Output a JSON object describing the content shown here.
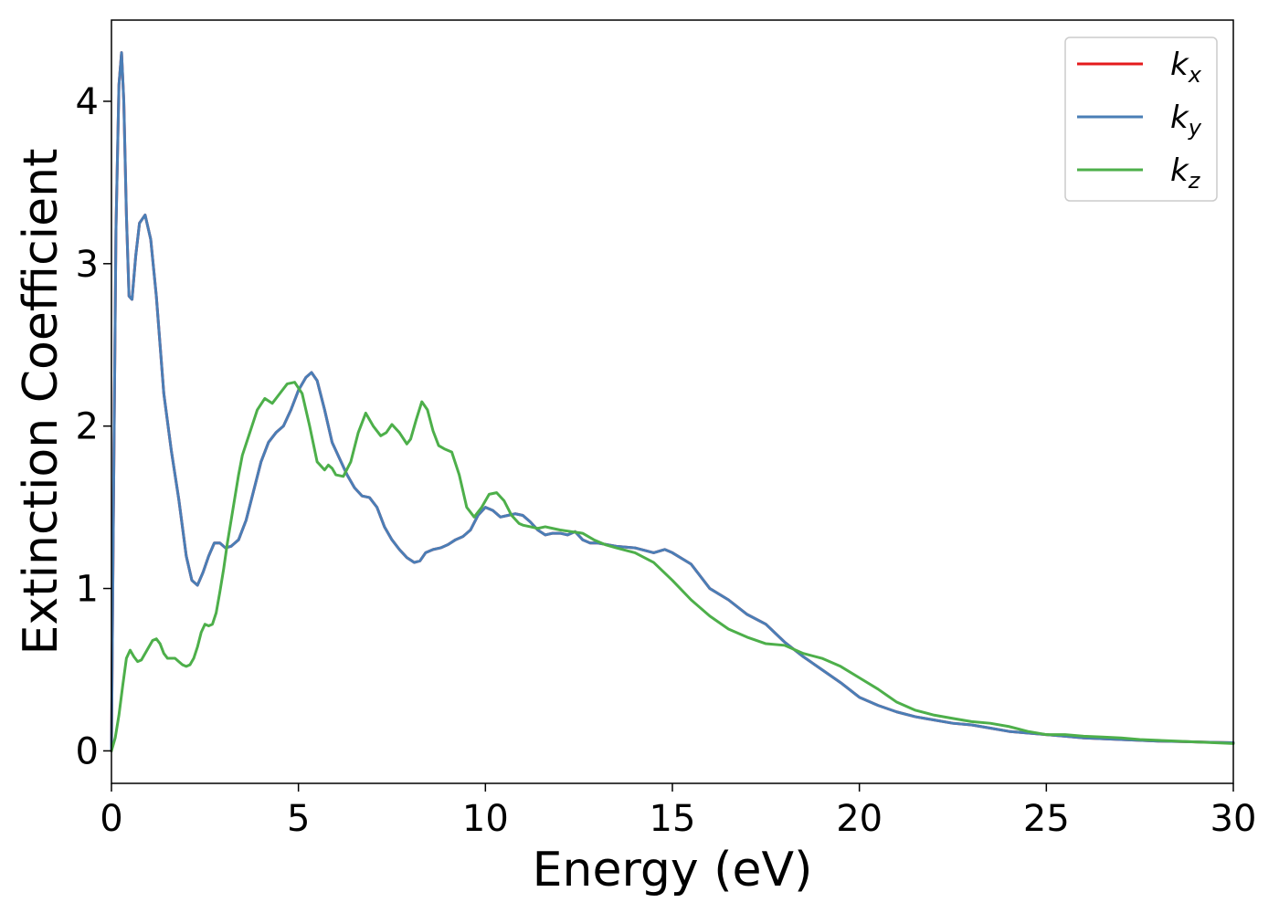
{
  "chart_data": {
    "type": "line",
    "xlabel": "Energy (eV)",
    "ylabel": "Extinction Coefficient",
    "xlim": [
      0,
      30
    ],
    "ylim": [
      -0.2,
      4.5
    ],
    "xticks": [
      "0",
      "5",
      "10",
      "15",
      "20",
      "25",
      "30"
    ],
    "yticks": [
      "0",
      "1",
      "2",
      "3",
      "4"
    ],
    "grid": false,
    "legend_position": "top-right",
    "series": [
      {
        "name": "k_x",
        "legend_base": "k",
        "legend_sub": "x",
        "color": "#e41a1c",
        "x": [
          0,
          0.05,
          0.12,
          0.2,
          0.27,
          0.33,
          0.4,
          0.47,
          0.55,
          0.65,
          0.75,
          0.9,
          1.05,
          1.2,
          1.4,
          1.6,
          1.8,
          2.0,
          2.15,
          2.3,
          2.45,
          2.6,
          2.75,
          2.9,
          3.05,
          3.2,
          3.4,
          3.6,
          3.8,
          4.0,
          4.2,
          4.4,
          4.6,
          4.8,
          5.0,
          5.2,
          5.35,
          5.5,
          5.7,
          5.9,
          6.1,
          6.3,
          6.5,
          6.7,
          6.9,
          7.1,
          7.3,
          7.5,
          7.7,
          7.9,
          8.1,
          8.25,
          8.4,
          8.6,
          8.8,
          9.0,
          9.2,
          9.4,
          9.6,
          9.8,
          10.0,
          10.2,
          10.4,
          10.6,
          10.8,
          11.0,
          11.2,
          11.4,
          11.6,
          11.8,
          12.0,
          12.2,
          12.4,
          12.6,
          12.8,
          13.0,
          13.5,
          14.0,
          14.5,
          14.8,
          15.0,
          15.5,
          16.0,
          16.5,
          17.0,
          17.5,
          18.0,
          18.5,
          19.0,
          19.5,
          20.0,
          20.5,
          21.0,
          21.5,
          22.0,
          22.5,
          23.0,
          23.5,
          24.0,
          24.5,
          25.0,
          25.5,
          26.0,
          26.5,
          27.0,
          27.5,
          28.0,
          28.5,
          29.0,
          29.5,
          30.0
        ],
        "y": [
          0.0,
          1.4,
          3.2,
          4.1,
          4.3,
          4.0,
          3.3,
          2.8,
          2.78,
          3.05,
          3.25,
          3.3,
          3.15,
          2.8,
          2.2,
          1.85,
          1.55,
          1.2,
          1.05,
          1.02,
          1.1,
          1.2,
          1.28,
          1.28,
          1.25,
          1.26,
          1.3,
          1.42,
          1.6,
          1.78,
          1.9,
          1.96,
          2.0,
          2.1,
          2.22,
          2.3,
          2.33,
          2.28,
          2.1,
          1.9,
          1.8,
          1.7,
          1.62,
          1.57,
          1.56,
          1.5,
          1.38,
          1.3,
          1.24,
          1.19,
          1.16,
          1.17,
          1.22,
          1.24,
          1.25,
          1.27,
          1.3,
          1.32,
          1.36,
          1.45,
          1.5,
          1.48,
          1.44,
          1.45,
          1.46,
          1.45,
          1.41,
          1.36,
          1.33,
          1.34,
          1.34,
          1.33,
          1.35,
          1.3,
          1.28,
          1.28,
          1.26,
          1.25,
          1.22,
          1.24,
          1.22,
          1.15,
          1.0,
          0.93,
          0.84,
          0.78,
          0.67,
          0.58,
          0.5,
          0.42,
          0.33,
          0.28,
          0.24,
          0.21,
          0.19,
          0.17,
          0.16,
          0.14,
          0.12,
          0.11,
          0.1,
          0.09,
          0.08,
          0.075,
          0.07,
          0.065,
          0.06,
          0.058,
          0.055,
          0.052,
          0.05
        ]
      },
      {
        "name": "k_y",
        "legend_base": "k",
        "legend_sub": "y",
        "color": "#4a7eb6",
        "x": [
          0,
          0.05,
          0.12,
          0.2,
          0.27,
          0.33,
          0.4,
          0.47,
          0.55,
          0.65,
          0.75,
          0.9,
          1.05,
          1.2,
          1.4,
          1.6,
          1.8,
          2.0,
          2.15,
          2.3,
          2.45,
          2.6,
          2.75,
          2.9,
          3.05,
          3.2,
          3.4,
          3.6,
          3.8,
          4.0,
          4.2,
          4.4,
          4.6,
          4.8,
          5.0,
          5.2,
          5.35,
          5.5,
          5.7,
          5.9,
          6.1,
          6.3,
          6.5,
          6.7,
          6.9,
          7.1,
          7.3,
          7.5,
          7.7,
          7.9,
          8.1,
          8.25,
          8.4,
          8.6,
          8.8,
          9.0,
          9.2,
          9.4,
          9.6,
          9.8,
          10.0,
          10.2,
          10.4,
          10.6,
          10.8,
          11.0,
          11.2,
          11.4,
          11.6,
          11.8,
          12.0,
          12.2,
          12.4,
          12.6,
          12.8,
          13.0,
          13.5,
          14.0,
          14.5,
          14.8,
          15.0,
          15.5,
          16.0,
          16.5,
          17.0,
          17.5,
          18.0,
          18.5,
          19.0,
          19.5,
          20.0,
          20.5,
          21.0,
          21.5,
          22.0,
          22.5,
          23.0,
          23.5,
          24.0,
          24.5,
          25.0,
          25.5,
          26.0,
          26.5,
          27.0,
          27.5,
          28.0,
          28.5,
          29.0,
          29.5,
          30.0
        ],
        "y": [
          0.0,
          1.4,
          3.2,
          4.1,
          4.3,
          4.0,
          3.3,
          2.8,
          2.78,
          3.05,
          3.25,
          3.3,
          3.15,
          2.8,
          2.2,
          1.85,
          1.55,
          1.2,
          1.05,
          1.02,
          1.1,
          1.2,
          1.28,
          1.28,
          1.25,
          1.26,
          1.3,
          1.42,
          1.6,
          1.78,
          1.9,
          1.96,
          2.0,
          2.1,
          2.22,
          2.3,
          2.33,
          2.28,
          2.1,
          1.9,
          1.8,
          1.7,
          1.62,
          1.57,
          1.56,
          1.5,
          1.38,
          1.3,
          1.24,
          1.19,
          1.16,
          1.17,
          1.22,
          1.24,
          1.25,
          1.27,
          1.3,
          1.32,
          1.36,
          1.45,
          1.5,
          1.48,
          1.44,
          1.45,
          1.46,
          1.45,
          1.41,
          1.36,
          1.33,
          1.34,
          1.34,
          1.33,
          1.35,
          1.3,
          1.28,
          1.28,
          1.26,
          1.25,
          1.22,
          1.24,
          1.22,
          1.15,
          1.0,
          0.93,
          0.84,
          0.78,
          0.67,
          0.58,
          0.5,
          0.42,
          0.33,
          0.28,
          0.24,
          0.21,
          0.19,
          0.17,
          0.16,
          0.14,
          0.12,
          0.11,
          0.1,
          0.09,
          0.08,
          0.075,
          0.07,
          0.065,
          0.06,
          0.058,
          0.055,
          0.052,
          0.05
        ]
      },
      {
        "name": "k_z",
        "legend_base": "k",
        "legend_sub": "z",
        "color": "#4daf4a",
        "x": [
          0,
          0.1,
          0.2,
          0.3,
          0.4,
          0.5,
          0.6,
          0.7,
          0.8,
          0.9,
          1.0,
          1.1,
          1.2,
          1.3,
          1.4,
          1.5,
          1.6,
          1.7,
          1.8,
          1.9,
          2.0,
          2.1,
          2.2,
          2.3,
          2.4,
          2.5,
          2.6,
          2.7,
          2.8,
          2.9,
          3.0,
          3.1,
          3.2,
          3.3,
          3.4,
          3.5,
          3.7,
          3.9,
          4.1,
          4.3,
          4.5,
          4.7,
          4.9,
          5.1,
          5.3,
          5.5,
          5.7,
          5.8,
          5.9,
          6.0,
          6.2,
          6.4,
          6.6,
          6.8,
          7.0,
          7.2,
          7.35,
          7.5,
          7.7,
          7.9,
          8.0,
          8.15,
          8.3,
          8.45,
          8.6,
          8.75,
          8.9,
          9.1,
          9.3,
          9.5,
          9.7,
          9.9,
          10.1,
          10.3,
          10.5,
          10.7,
          10.9,
          11.0,
          11.2,
          11.4,
          11.6,
          11.8,
          12.0,
          12.3,
          12.6,
          12.9,
          13.2,
          13.5,
          14.0,
          14.5,
          15.0,
          15.5,
          16.0,
          16.5,
          17.0,
          17.5,
          18.0,
          18.5,
          19.0,
          19.5,
          20.0,
          20.5,
          21.0,
          21.5,
          22.0,
          22.5,
          23.0,
          23.5,
          24.0,
          24.5,
          25.0,
          25.5,
          26.0,
          26.5,
          27.0,
          27.5,
          28.0,
          28.5,
          29.0,
          29.5,
          30.0
        ],
        "y": [
          0.0,
          0.08,
          0.22,
          0.4,
          0.57,
          0.62,
          0.58,
          0.55,
          0.56,
          0.6,
          0.64,
          0.68,
          0.69,
          0.66,
          0.6,
          0.57,
          0.57,
          0.57,
          0.55,
          0.53,
          0.52,
          0.53,
          0.57,
          0.64,
          0.73,
          0.78,
          0.77,
          0.78,
          0.85,
          0.98,
          1.12,
          1.28,
          1.42,
          1.56,
          1.7,
          1.82,
          1.96,
          2.1,
          2.17,
          2.14,
          2.2,
          2.26,
          2.27,
          2.2,
          2.0,
          1.78,
          1.73,
          1.76,
          1.74,
          1.7,
          1.69,
          1.78,
          1.96,
          2.08,
          2.0,
          1.94,
          1.96,
          2.01,
          1.96,
          1.89,
          1.92,
          2.04,
          2.15,
          2.1,
          1.97,
          1.88,
          1.86,
          1.84,
          1.7,
          1.5,
          1.44,
          1.5,
          1.58,
          1.59,
          1.54,
          1.45,
          1.4,
          1.39,
          1.38,
          1.37,
          1.38,
          1.37,
          1.36,
          1.35,
          1.34,
          1.3,
          1.27,
          1.25,
          1.22,
          1.16,
          1.05,
          0.93,
          0.83,
          0.75,
          0.7,
          0.66,
          0.65,
          0.6,
          0.57,
          0.52,
          0.45,
          0.38,
          0.3,
          0.25,
          0.22,
          0.2,
          0.18,
          0.17,
          0.15,
          0.12,
          0.1,
          0.1,
          0.09,
          0.085,
          0.08,
          0.07,
          0.065,
          0.06,
          0.055,
          0.05,
          0.045
        ]
      }
    ]
  }
}
